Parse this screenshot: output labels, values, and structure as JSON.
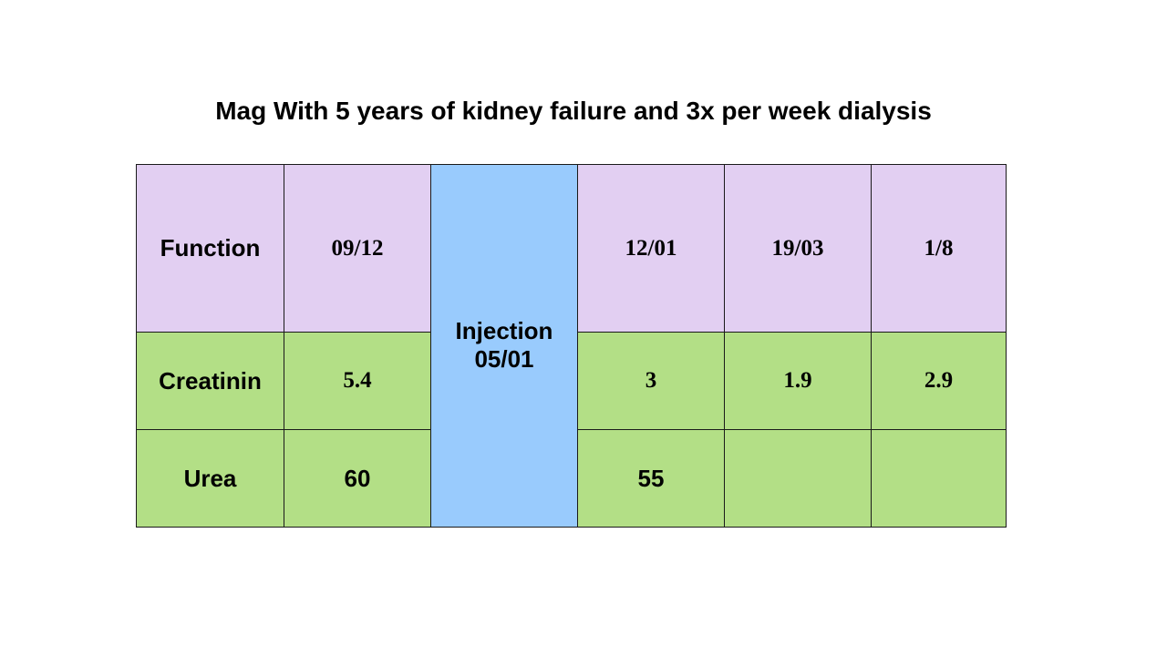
{
  "title": "Mag With 5 years of kidney failure and 3x per week dialysis",
  "table": {
    "header": [
      "Function",
      "09/12",
      "12/01",
      "19/03",
      "1/8"
    ],
    "injection": {
      "line1": "Injection",
      "line2": "05/01"
    },
    "rows": [
      {
        "label": "Creatinin",
        "values": [
          "5.4",
          "3",
          "1.9",
          "2.9"
        ]
      },
      {
        "label": "Urea",
        "values": [
          "60",
          "55",
          "",
          ""
        ]
      }
    ]
  },
  "colors": {
    "header_bg": "#e2cff2",
    "row_bg": "#b3df86",
    "injection_bg": "#99cbfd",
    "border": "#1a1a1a"
  }
}
